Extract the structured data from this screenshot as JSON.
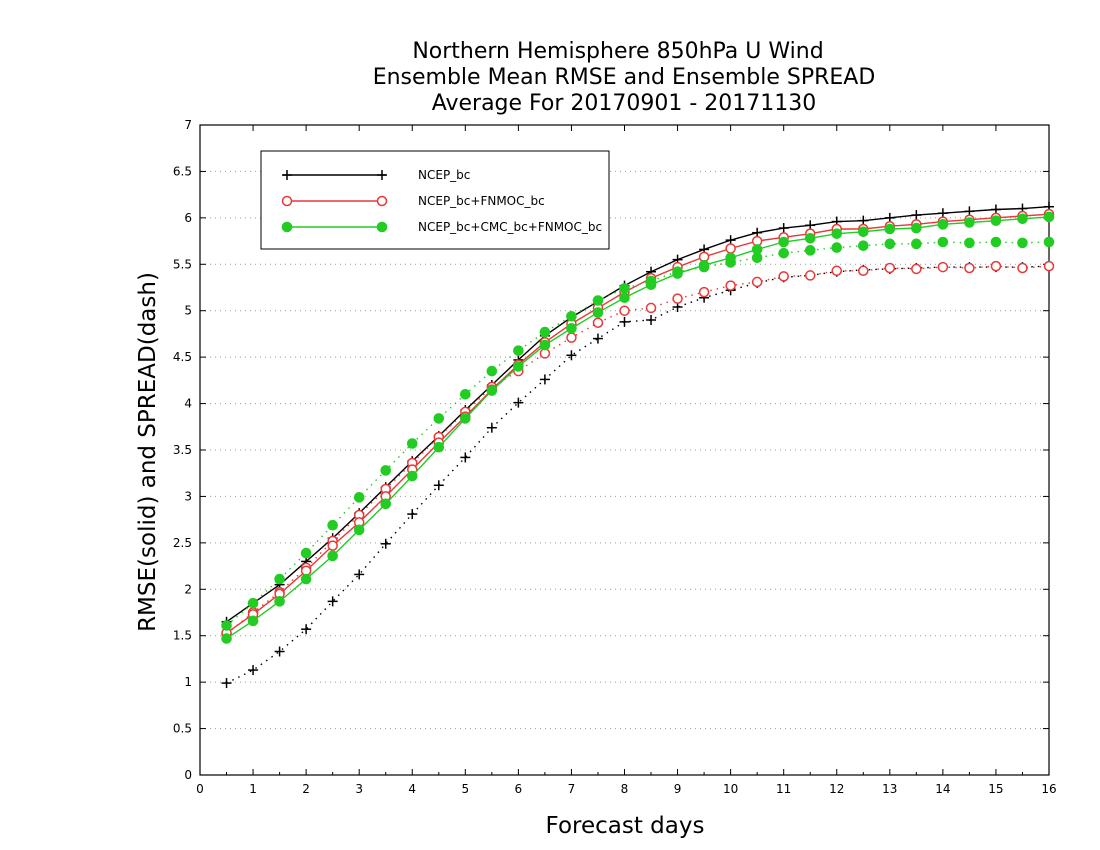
{
  "chart_data": {
    "type": "line",
    "title_lines": [
      "Northern Hemisphere 850hPa U Wind",
      "Ensemble Mean RMSE and Ensemble SPREAD",
      "Average For 20170901 - 20171130"
    ],
    "xlabel": "Forecast days",
    "ylabel": "RMSE(solid) and SPREAD(dash)",
    "xlim": [
      0,
      16
    ],
    "ylim": [
      0,
      7
    ],
    "x_ticks": [
      "0",
      "1",
      "2",
      "3",
      "4",
      "5",
      "6",
      "7",
      "8",
      "9",
      "10",
      "11",
      "12",
      "13",
      "14",
      "15",
      "16"
    ],
    "y_ticks": [
      "0",
      "0.5",
      "1",
      "1.5",
      "2",
      "2.5",
      "3",
      "3.5",
      "4",
      "4.5",
      "5",
      "5.5",
      "6",
      "6.5",
      "7"
    ],
    "grid": "dotted horizontal",
    "legend_position": "top-left",
    "x": [
      0.5,
      1,
      1.5,
      2,
      2.5,
      3,
      3.5,
      4,
      4.5,
      5,
      5.5,
      6,
      6.5,
      7,
      7.5,
      8,
      8.5,
      9,
      9.5,
      10,
      10.5,
      11,
      11.5,
      12,
      12.5,
      13,
      13.5,
      14,
      14.5,
      15,
      15.5,
      16
    ],
    "series": [
      {
        "name": "NCEP_bc",
        "color": "#000000",
        "marker": "plus",
        "rmse": [
          1.65,
          1.85,
          2.05,
          2.3,
          2.55,
          2.82,
          3.1,
          3.38,
          3.65,
          3.93,
          4.2,
          4.47,
          4.73,
          4.93,
          5.1,
          5.27,
          5.42,
          5.55,
          5.66,
          5.76,
          5.84,
          5.89,
          5.92,
          5.96,
          5.97,
          6.0,
          6.03,
          6.05,
          6.07,
          6.09,
          6.1,
          6.12
        ],
        "spread": [
          0.99,
          1.13,
          1.33,
          1.57,
          1.87,
          2.16,
          2.49,
          2.81,
          3.12,
          3.42,
          3.74,
          4.01,
          4.26,
          4.52,
          4.7,
          4.88,
          4.9,
          5.04,
          5.14,
          5.22,
          5.3,
          5.36,
          5.38,
          5.42,
          5.44,
          5.45,
          5.46,
          5.47,
          5.47,
          5.47,
          5.47,
          5.48
        ]
      },
      {
        "name": "NCEP_bc+FNMOC_bc",
        "color": "#e83838",
        "marker": "open-circle",
        "rmse": [
          1.53,
          1.73,
          1.95,
          2.2,
          2.47,
          2.72,
          3.0,
          3.29,
          3.58,
          3.86,
          4.15,
          4.42,
          4.66,
          4.86,
          5.03,
          5.2,
          5.35,
          5.47,
          5.58,
          5.67,
          5.75,
          5.79,
          5.83,
          5.88,
          5.88,
          5.91,
          5.93,
          5.96,
          5.98,
          6.0,
          6.02,
          6.04
        ],
        "spread": [
          1.52,
          1.75,
          1.97,
          2.23,
          2.52,
          2.8,
          3.08,
          3.36,
          3.64,
          3.91,
          4.18,
          4.35,
          4.54,
          4.71,
          4.87,
          5.0,
          5.03,
          5.13,
          5.2,
          5.27,
          5.31,
          5.37,
          5.38,
          5.43,
          5.43,
          5.46,
          5.45,
          5.47,
          5.46,
          5.48,
          5.46,
          5.48
        ]
      },
      {
        "name": "NCEP_bc+CMC_bc+FNMOC_bc",
        "color": "#22cc22",
        "marker": "filled-circle",
        "rmse": [
          1.47,
          1.66,
          1.87,
          2.11,
          2.36,
          2.64,
          2.92,
          3.22,
          3.53,
          3.84,
          4.14,
          4.4,
          4.63,
          4.81,
          4.98,
          5.14,
          5.28,
          5.4,
          5.49,
          5.57,
          5.66,
          5.74,
          5.78,
          5.83,
          5.85,
          5.88,
          5.89,
          5.93,
          5.95,
          5.97,
          5.99,
          6.01
        ],
        "spread": [
          1.61,
          1.85,
          2.11,
          2.39,
          2.69,
          2.99,
          3.28,
          3.57,
          3.84,
          4.1,
          4.35,
          4.57,
          4.77,
          4.94,
          5.11,
          5.24,
          5.32,
          5.42,
          5.47,
          5.52,
          5.57,
          5.62,
          5.65,
          5.68,
          5.7,
          5.72,
          5.72,
          5.74,
          5.73,
          5.74,
          5.73,
          5.74
        ]
      }
    ]
  }
}
